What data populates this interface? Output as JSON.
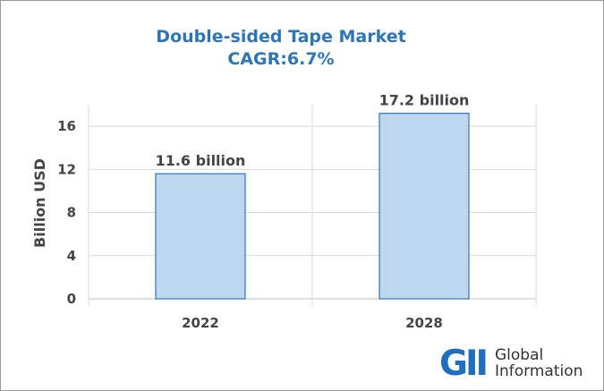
{
  "title": {
    "line1": "Double-sided Tape Market",
    "line2": "CAGR:6.7%"
  },
  "logo": {
    "mark": "GII",
    "line1": "Global",
    "line2": "Information"
  },
  "colors": {
    "title": "#2e75b6",
    "bar_fill": "#bdd7ee",
    "bar_stroke": "#2e75b6",
    "grid": "#d9d9d9",
    "text": "#444444"
  },
  "chart_data": {
    "type": "bar",
    "categories": [
      "2022",
      "2028"
    ],
    "values": [
      11.6,
      17.2
    ],
    "data_labels": [
      "11.6 billion",
      "17.2 billion"
    ],
    "title": "Double-sided Tape Market CAGR:6.7%",
    "xlabel": "",
    "ylabel": "Billion USD",
    "ylim": [
      0,
      18
    ],
    "yticks": [
      0,
      4,
      8,
      12,
      16
    ],
    "grid": true,
    "legend": "none"
  }
}
